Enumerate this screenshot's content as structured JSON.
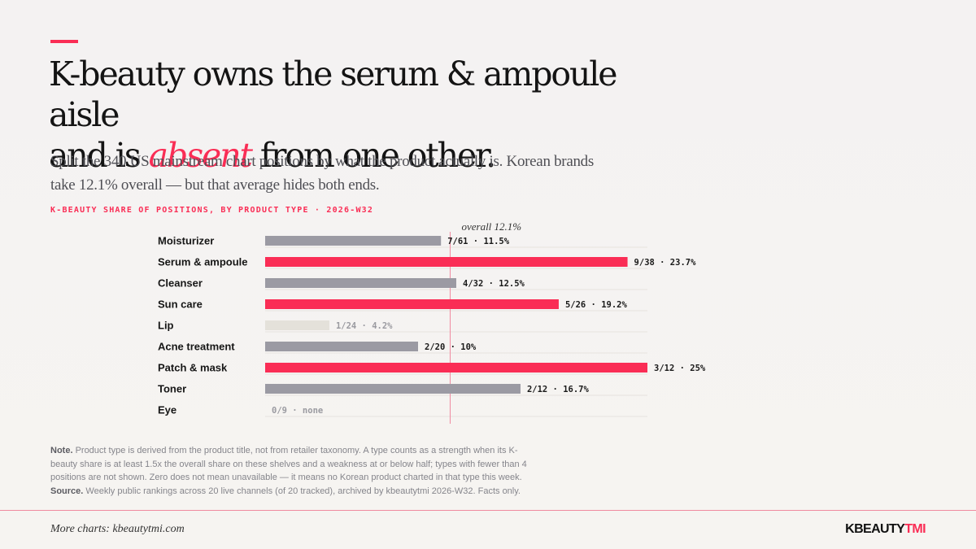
{
  "headline": {
    "line1": "K-beauty owns the serum & ampoule aisle",
    "line2_pre": "and is ",
    "line2_em": "absent",
    "line2_post": " from one other."
  },
  "subtitle": "Split the 340 US mainstream chart positions by what the product actually is. Korean brands take 12.1% overall — but that average hides both ends.",
  "chart_label": "K-BEAUTY SHARE OF POSITIONS, BY PRODUCT TYPE · 2026-W32",
  "chart_data": {
    "type": "bar",
    "orientation": "horizontal",
    "categories": [
      "Moisturizer",
      "Serum & ampoule",
      "Cleanser",
      "Sun care",
      "Lip",
      "Acne treatment",
      "Patch & mask",
      "Toner",
      "Eye"
    ],
    "values": [
      11.5,
      23.7,
      12.5,
      19.2,
      4.2,
      10,
      25,
      16.7,
      0
    ],
    "value_labels": [
      "7/61 · 11.5%",
      "9/38 · 23.7%",
      "4/32 · 12.5%",
      "5/26 · 19.2%",
      "1/24 · 4.2%",
      "2/20 · 10%",
      "3/12 · 25%",
      "2/12 · 16.7%",
      "0/9 · none"
    ],
    "status": [
      "neutral",
      "strength",
      "neutral",
      "strength",
      "weakness",
      "neutral",
      "strength",
      "neutral",
      "absent"
    ],
    "reference_value": 12.1,
    "reference_label": "overall 12.1%",
    "xlim": [
      0,
      25
    ],
    "colors": {
      "strength": "#fa2d55",
      "neutral": "#9b9aa3",
      "weakness": "#e4e1da",
      "reference": "#f08aa0",
      "label": "#1a1a1a",
      "label_muted": "#9a9aa0"
    }
  },
  "note": {
    "note_label": "Note.",
    "note_text": "Product type is derived from the product title, not from retailer taxonomy. A type counts as a strength when its K-beauty share is at least 1.5x the overall share on these shelves and a weakness at or below half; types with fewer than 4 positions are not shown. Zero does not mean unavailable — it means no Korean product charted in that type this week.",
    "source_label": "Source.",
    "source_text": "Weekly public rankings across 20 live channels (of 20 tracked), archived by kbeautytmi 2026-W32. Facts only."
  },
  "footer": {
    "link": "More charts: kbeautytmi.com",
    "brand_a": "KBEAUTY",
    "brand_b": "TMI"
  }
}
